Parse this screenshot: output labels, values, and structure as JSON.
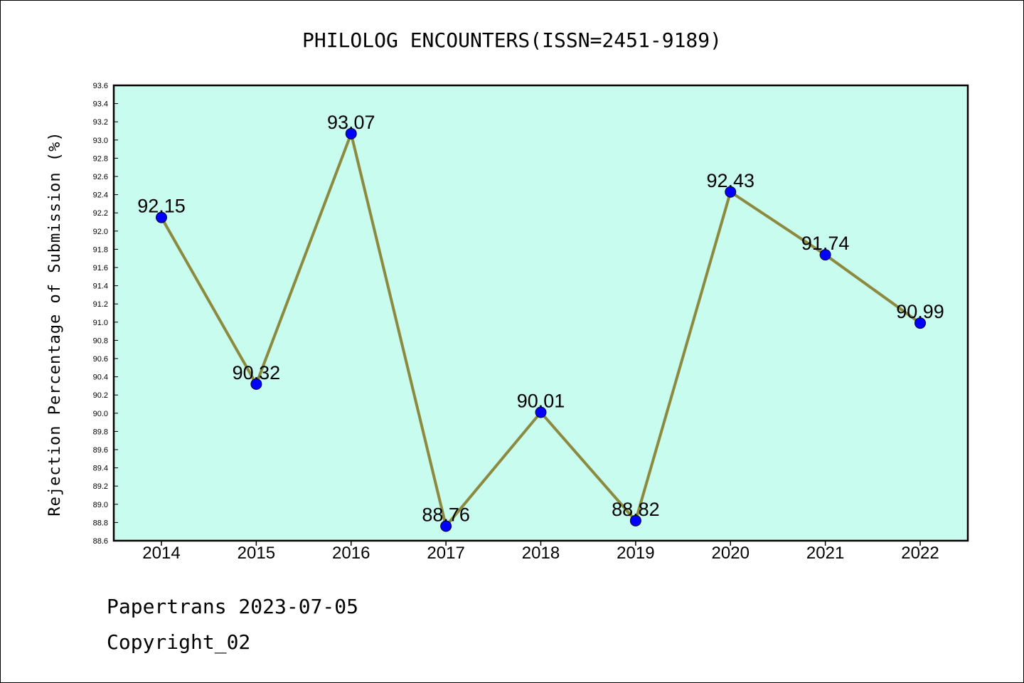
{
  "chart_data": {
    "type": "line",
    "title": "PHILOLOG ENCOUNTERS(ISSN=2451-9189)",
    "xlabel": "",
    "ylabel": "Rejection Percentage of Submission (%)",
    "categories": [
      "2014",
      "2015",
      "2016",
      "2017",
      "2018",
      "2019",
      "2020",
      "2021",
      "2022"
    ],
    "values": [
      92.15,
      90.32,
      93.07,
      88.76,
      90.01,
      88.82,
      92.43,
      91.74,
      90.99
    ],
    "value_labels": [
      "92.15",
      "90.32",
      "93.07",
      "88.76",
      "90.01",
      "88.82",
      "92.43",
      "91.74",
      "90.99"
    ],
    "ylim": [
      88.6,
      93.6
    ],
    "ytick_step": 0.2,
    "grid": false,
    "colors": {
      "plot_background": "#c8fcee",
      "line": "#8b8a3e",
      "marker": "#0000ff"
    }
  },
  "footer": {
    "line1": "Papertrans 2023-07-05",
    "line2": "Copyright_02"
  }
}
